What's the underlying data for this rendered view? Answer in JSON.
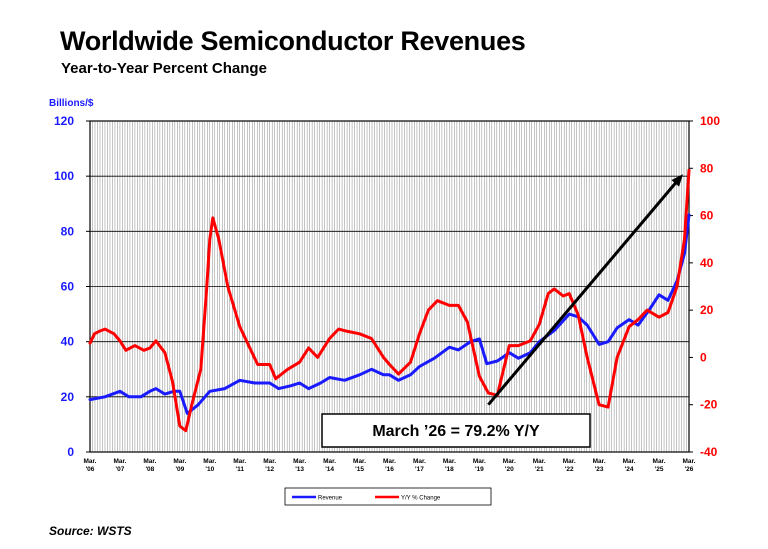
{
  "colors": {
    "revenue": "#1a1aff",
    "change": "#ff0000",
    "axis_left": "#1a1aff",
    "axis_right": "#ff0000",
    "grid": "#000000"
  },
  "source": "Source: WSTS",
  "chart_data": {
    "type": "line",
    "title": "Worldwide Semiconductor Revenues",
    "subtitle": "Year-to-Year Percent Change",
    "ylabel": "Billions/$",
    "ylim": [
      0,
      120
    ],
    "y2lim": [
      -40,
      100
    ],
    "yticks": [
      0,
      20,
      40,
      60,
      80,
      100,
      120
    ],
    "y2ticks": [
      -40,
      -20,
      0,
      20,
      40,
      60,
      80,
      100
    ],
    "xlim": [
      2006,
      2026
    ],
    "x_tick_values": [
      2006,
      2007,
      2008,
      2009,
      2010,
      2011,
      2012,
      2013,
      2014,
      2015,
      2016,
      2017,
      2018,
      2019,
      2020,
      2021,
      2022,
      2023,
      2024,
      2025,
      2026
    ],
    "x_tick_labels": [
      [
        "Mar.",
        "'06"
      ],
      [
        "Mar.",
        "'07"
      ],
      [
        "Mar.",
        "'08"
      ],
      [
        "Mar.",
        "'09"
      ],
      [
        "Mar.",
        "'10"
      ],
      [
        "Mar.",
        "'11"
      ],
      [
        "Mar.",
        "'12"
      ],
      [
        "Mar.",
        "'13"
      ],
      [
        "Mar.",
        "'14"
      ],
      [
        "Mar.",
        "'15"
      ],
      [
        "Mar.",
        "'16"
      ],
      [
        "Mar.",
        "'17"
      ],
      [
        "Mar.",
        "'18"
      ],
      [
        "Mar.",
        "'19"
      ],
      [
        "Mar.",
        "'20"
      ],
      [
        "Mar.",
        "'21"
      ],
      [
        "Mar.",
        "'22"
      ],
      [
        "Mar.",
        "'23"
      ],
      [
        "Mar.",
        "'24"
      ],
      [
        "Mar.",
        "'25"
      ],
      [
        "Mar.",
        "'26"
      ]
    ],
    "grid": "vertical",
    "legend_position": "bottom-center",
    "series": [
      {
        "name": "Revenue",
        "axis": "left",
        "points": [
          [
            2006.0,
            19
          ],
          [
            2006.5,
            20
          ],
          [
            2007.0,
            22
          ],
          [
            2007.3,
            20
          ],
          [
            2007.7,
            20
          ],
          [
            2008.0,
            22
          ],
          [
            2008.2,
            23
          ],
          [
            2008.5,
            21
          ],
          [
            2008.8,
            22
          ],
          [
            2009.0,
            22
          ],
          [
            2009.25,
            14
          ],
          [
            2009.6,
            17
          ],
          [
            2010.0,
            22
          ],
          [
            2010.5,
            23
          ],
          [
            2011.0,
            26
          ],
          [
            2011.5,
            25
          ],
          [
            2012.0,
            25
          ],
          [
            2012.3,
            23
          ],
          [
            2012.7,
            24
          ],
          [
            2013.0,
            25
          ],
          [
            2013.3,
            23
          ],
          [
            2013.7,
            25
          ],
          [
            2014.0,
            27
          ],
          [
            2014.5,
            26
          ],
          [
            2015.0,
            28
          ],
          [
            2015.4,
            30
          ],
          [
            2015.8,
            28
          ],
          [
            2016.0,
            28
          ],
          [
            2016.3,
            26
          ],
          [
            2016.7,
            28
          ],
          [
            2017.0,
            31
          ],
          [
            2017.5,
            34
          ],
          [
            2018.0,
            38
          ],
          [
            2018.3,
            37
          ],
          [
            2018.7,
            40
          ],
          [
            2019.0,
            41
          ],
          [
            2019.25,
            32
          ],
          [
            2019.6,
            33
          ],
          [
            2020.0,
            36
          ],
          [
            2020.3,
            34
          ],
          [
            2020.7,
            36
          ],
          [
            2021.0,
            40
          ],
          [
            2021.5,
            44
          ],
          [
            2022.0,
            50
          ],
          [
            2022.3,
            49
          ],
          [
            2022.6,
            46
          ],
          [
            2023.0,
            39
          ],
          [
            2023.3,
            40
          ],
          [
            2023.6,
            45
          ],
          [
            2024.0,
            48
          ],
          [
            2024.3,
            46
          ],
          [
            2024.7,
            52
          ],
          [
            2025.0,
            57
          ],
          [
            2025.3,
            55
          ],
          [
            2025.6,
            62
          ],
          [
            2025.85,
            72
          ],
          [
            2026.0,
            86
          ]
        ]
      },
      {
        "name": "Y/Y % Change",
        "axis": "right",
        "points": [
          [
            2006.0,
            6
          ],
          [
            2006.15,
            10
          ],
          [
            2006.3,
            11
          ],
          [
            2006.5,
            12
          ],
          [
            2006.8,
            10
          ],
          [
            2007.0,
            7
          ],
          [
            2007.2,
            3
          ],
          [
            2007.5,
            5
          ],
          [
            2007.8,
            3
          ],
          [
            2008.0,
            4
          ],
          [
            2008.2,
            7
          ],
          [
            2008.5,
            2
          ],
          [
            2008.75,
            -10
          ],
          [
            2009.0,
            -29
          ],
          [
            2009.2,
            -31
          ],
          [
            2009.4,
            -20
          ],
          [
            2009.7,
            -5
          ],
          [
            2009.9,
            30
          ],
          [
            2010.0,
            50
          ],
          [
            2010.1,
            59
          ],
          [
            2010.3,
            50
          ],
          [
            2010.6,
            30
          ],
          [
            2011.0,
            13
          ],
          [
            2011.3,
            5
          ],
          [
            2011.6,
            -3
          ],
          [
            2012.0,
            -3
          ],
          [
            2012.2,
            -9
          ],
          [
            2012.6,
            -5
          ],
          [
            2013.0,
            -2
          ],
          [
            2013.3,
            4
          ],
          [
            2013.6,
            0
          ],
          [
            2014.0,
            8
          ],
          [
            2014.3,
            12
          ],
          [
            2014.6,
            11
          ],
          [
            2015.0,
            10
          ],
          [
            2015.4,
            8
          ],
          [
            2015.8,
            0
          ],
          [
            2016.0,
            -3
          ],
          [
            2016.3,
            -7
          ],
          [
            2016.7,
            -2
          ],
          [
            2017.0,
            10
          ],
          [
            2017.3,
            20
          ],
          [
            2017.6,
            24
          ],
          [
            2018.0,
            22
          ],
          [
            2018.3,
            22
          ],
          [
            2018.6,
            15
          ],
          [
            2019.0,
            -8
          ],
          [
            2019.3,
            -15
          ],
          [
            2019.6,
            -16
          ],
          [
            2020.0,
            5
          ],
          [
            2020.3,
            5
          ],
          [
            2020.7,
            7
          ],
          [
            2021.0,
            14
          ],
          [
            2021.3,
            27
          ],
          [
            2021.5,
            29
          ],
          [
            2021.8,
            26
          ],
          [
            2022.0,
            27
          ],
          [
            2022.3,
            18
          ],
          [
            2022.6,
            0
          ],
          [
            2023.0,
            -20
          ],
          [
            2023.3,
            -21
          ],
          [
            2023.6,
            0
          ],
          [
            2024.0,
            13
          ],
          [
            2024.3,
            16
          ],
          [
            2024.6,
            20
          ],
          [
            2025.0,
            17
          ],
          [
            2025.3,
            19
          ],
          [
            2025.6,
            30
          ],
          [
            2025.85,
            50
          ],
          [
            2026.0,
            79.2
          ]
        ]
      }
    ],
    "annotation": "March ’26 = 79.2% Y/Y",
    "annotation_arrow": {
      "from": [
        2019.3,
        -20
      ],
      "to": [
        2026.0,
        79.2
      ],
      "axis": "right"
    }
  }
}
